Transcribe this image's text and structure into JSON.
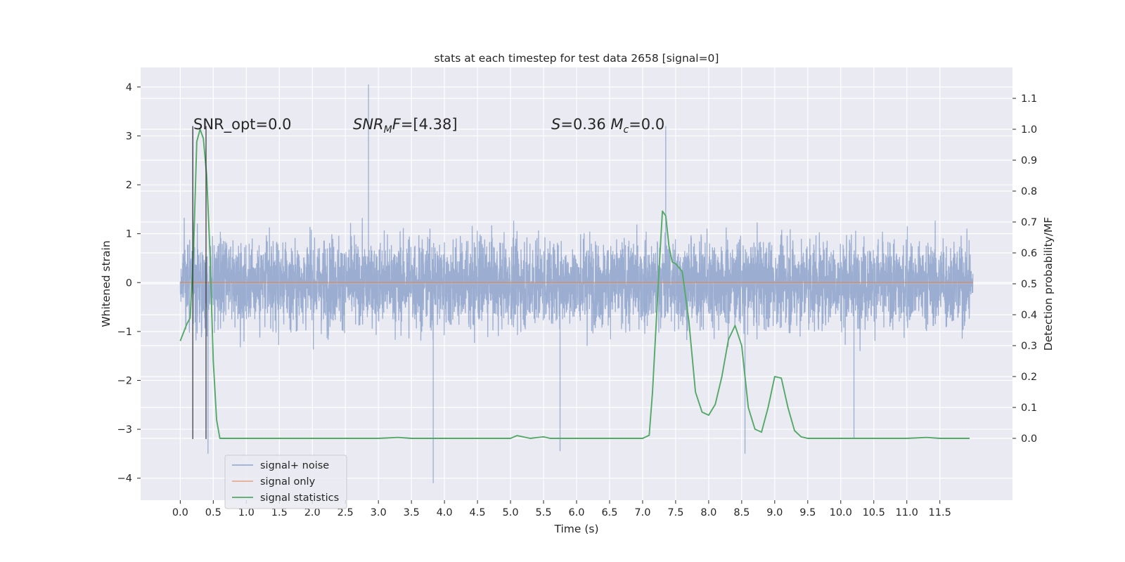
{
  "chart_data": {
    "type": "line",
    "title": "stats at each timestep for test data 2658 [signal=0]",
    "xlabel": "Time (s)",
    "ylabel": "Whitened strain",
    "ylabel_right": "Detection probability/MF",
    "xlim": [
      -0.6,
      12.6
    ],
    "ylim": [
      -4.45,
      4.4
    ],
    "ylim_right": [
      -0.2,
      1.2
    ],
    "x_ticks": [
      0.0,
      0.5,
      1.0,
      1.5,
      2.0,
      2.5,
      3.0,
      3.5,
      4.0,
      4.5,
      5.0,
      5.5,
      6.0,
      6.5,
      7.0,
      7.5,
      8.0,
      8.5,
      9.0,
      9.5,
      10.0,
      10.5,
      11.0,
      11.5
    ],
    "x_tick_labels": [
      "0.0",
      "0.5",
      "1.0",
      "1.5",
      "2.0",
      "2.5",
      "3.0",
      "3.5",
      "4.0",
      "4.5",
      "5.0",
      "5.5",
      "6.0",
      "6.5",
      "7.0",
      "7.5",
      "8.0",
      "8.5",
      "9.0",
      "9.5",
      "10.0",
      "10.5",
      "11.0",
      "11.5"
    ],
    "y_ticks": [
      -4,
      -3,
      -2,
      -1,
      0,
      1,
      2,
      3,
      4
    ],
    "y_tick_labels": [
      "−4",
      "−3",
      "−2",
      "−1",
      "0",
      "1",
      "2",
      "3",
      "4"
    ],
    "y_right_ticks": [
      0.0,
      0.1,
      0.2,
      0.3,
      0.4,
      0.5,
      0.6,
      0.7,
      0.8,
      0.9,
      1.0,
      1.1
    ],
    "y_right_tick_labels": [
      "0.0",
      "0.1",
      "0.2",
      "0.3",
      "0.4",
      "0.5",
      "0.6",
      "0.7",
      "0.8",
      "0.9",
      "1.0",
      "1.1"
    ],
    "grid": true,
    "legend_position": "lower-left",
    "series": [
      {
        "name": "signal+ noise",
        "color": "#4c72b0",
        "axis": "left",
        "description_values": {
          "x_range": [
            0.0,
            12.0
          ],
          "core_band": [
            -1.3,
            1.3
          ],
          "typical_envelope": [
            -2.3,
            2.4
          ],
          "peaks": [
            [
              0.19,
              3.2
            ],
            [
              2.85,
              4.05
            ],
            [
              3.83,
              -4.1
            ],
            [
              0.42,
              -3.5
            ],
            [
              8.55,
              -3.5
            ],
            [
              5.75,
              -3.45
            ],
            [
              10.2,
              -3.2
            ],
            [
              7.35,
              3.2
            ]
          ]
        }
      },
      {
        "name": "signal only",
        "color": "#dd8452",
        "axis": "left",
        "x": [
          0.0,
          12.0
        ],
        "values": [
          0.0,
          0.0
        ]
      },
      {
        "name": "signal statistics",
        "color": "#55a868",
        "axis": "right",
        "x": [
          0.0,
          0.1,
          0.15,
          0.2,
          0.25,
          0.3,
          0.35,
          0.4,
          0.45,
          0.5,
          0.55,
          0.6,
          0.7,
          1.0,
          1.5,
          2.0,
          3.0,
          3.3,
          3.5,
          4.0,
          4.5,
          5.0,
          5.1,
          5.3,
          5.5,
          5.6,
          5.8,
          6.0,
          6.5,
          7.0,
          7.1,
          7.15,
          7.25,
          7.3,
          7.35,
          7.4,
          7.45,
          7.5,
          7.6,
          7.7,
          7.8,
          7.9,
          8.0,
          8.1,
          8.2,
          8.3,
          8.4,
          8.5,
          8.6,
          8.7,
          8.8,
          8.9,
          9.0,
          9.1,
          9.2,
          9.3,
          9.4,
          9.5,
          10.0,
          11.0,
          11.3,
          11.5,
          11.95
        ],
        "values": [
          0.315,
          0.37,
          0.39,
          0.6,
          0.96,
          1.0,
          0.97,
          0.85,
          0.6,
          0.25,
          0.06,
          0.0,
          0.0,
          0.0,
          0.0,
          0.0,
          0.0,
          0.003,
          0.0,
          0.0,
          0.0,
          0.0,
          0.009,
          0.0,
          0.005,
          0.0,
          0.0,
          0.0,
          0.0,
          0.0,
          0.01,
          0.15,
          0.55,
          0.735,
          0.72,
          0.62,
          0.57,
          0.565,
          0.54,
          0.38,
          0.15,
          0.085,
          0.075,
          0.11,
          0.2,
          0.32,
          0.365,
          0.3,
          0.1,
          0.03,
          0.02,
          0.1,
          0.2,
          0.195,
          0.1,
          0.025,
          0.005,
          0.0,
          0.0,
          0.0,
          0.003,
          0.0,
          0.0
        ]
      }
    ],
    "vertical_lines": [
      0.19,
      0.39
    ],
    "annotations": [
      {
        "text": "SNR_opt=0.0"
      },
      {
        "text": "SNR_MF=[4.38]",
        "display": [
          {
            "t": "SNR",
            "i": true
          },
          {
            "t": "M",
            "i": true,
            "sub": true
          },
          {
            "t": "F",
            "i": true
          },
          {
            "t": "=[4.38]",
            "i": false
          }
        ]
      },
      {
        "text": "S=0.36   M_c=0.0",
        "display": [
          {
            "t": "S",
            "i": true
          },
          {
            "t": "=0.36   ",
            "i": false
          },
          {
            "t": "M",
            "i": true
          },
          {
            "t": "c",
            "i": true,
            "sub": true
          },
          {
            "t": "=0.0",
            "i": false
          }
        ]
      }
    ]
  },
  "colors": {
    "axes_background": "#eaeaf2",
    "grid": "#ffffff",
    "vertical_lines": "#262626"
  }
}
